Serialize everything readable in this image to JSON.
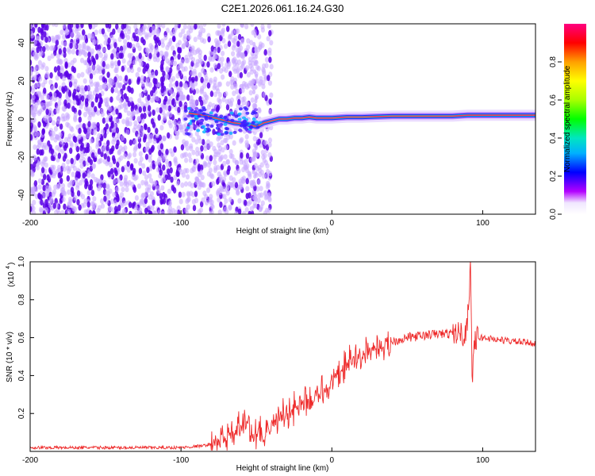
{
  "title": "C2E1.2026.061.16.24.G30",
  "colors": {
    "snr_line": "#ee2b2b",
    "dot_dense": "#5a00e6",
    "dot_light": "#c9a8ff",
    "frame": "#000000"
  },
  "chart_data": [
    {
      "type": "heatmap",
      "title": "",
      "xlabel": "Height of straight line (km)",
      "ylabel": "Frequency (Hz)",
      "xlim": [
        -200,
        135
      ],
      "ylim": [
        -50,
        50
      ],
      "xticks": [
        "-200",
        "-100",
        "0",
        "100"
      ],
      "yticks": [
        "-40",
        "-20",
        "0",
        "20",
        "40"
      ],
      "colorbar": {
        "label": "Normalized spectral amplitude",
        "range": [
          0.0,
          1.0
        ],
        "ticks": [
          "0.0",
          "0.2",
          "0.4",
          "0.6",
          "0.8"
        ]
      },
      "signal_track": {
        "x": [
          -95,
          -85,
          -75,
          -65,
          -55,
          -50,
          -45,
          -40,
          -35,
          -30,
          -25,
          -20,
          -15,
          -10,
          -5,
          0,
          10,
          20,
          40,
          60,
          80,
          90,
          100,
          120,
          135
        ],
        "y": [
          3,
          2,
          0,
          -2,
          -3,
          -4,
          -2,
          -1,
          0,
          0,
          0.5,
          0.5,
          1,
          0.5,
          0.5,
          0.5,
          1,
          1,
          1.5,
          1.5,
          1.5,
          2,
          2,
          2,
          2
        ]
      },
      "noise_region": {
        "x_from": -200,
        "x_to": -50
      }
    },
    {
      "type": "line",
      "title": "",
      "xlabel": "Height of straight line (km)",
      "ylabel": "SNR (10 * v/v)",
      "y_scale_label": "(x10",
      "y_scale_exp": "4",
      "xlim": [
        -200,
        135
      ],
      "ylim": [
        0,
        1.0
      ],
      "xticks": [
        "-200",
        "-100",
        "0",
        "100"
      ],
      "yticks": [
        "0.2",
        "0.4",
        "0.6",
        "0.8",
        "1.0"
      ],
      "series": [
        {
          "x": [
            -200,
            -150,
            -100,
            -85,
            -75,
            -65,
            -60,
            -55,
            -52,
            -48,
            -45,
            -40,
            -35,
            -30,
            -25,
            -20,
            -15,
            -10,
            -5,
            0,
            5,
            10,
            20,
            30,
            40,
            50,
            60,
            70,
            80,
            85,
            88,
            90,
            92,
            93,
            94,
            96,
            100,
            110,
            120,
            135
          ],
          "y": [
            0.02,
            0.02,
            0.02,
            0.03,
            0.05,
            0.09,
            0.13,
            0.16,
            0.06,
            0.12,
            0.04,
            0.14,
            0.18,
            0.21,
            0.22,
            0.24,
            0.26,
            0.28,
            0.32,
            0.36,
            0.41,
            0.46,
            0.51,
            0.55,
            0.58,
            0.6,
            0.61,
            0.62,
            0.62,
            0.63,
            0.6,
            0.7,
            1.0,
            0.35,
            0.55,
            0.6,
            0.6,
            0.59,
            0.58,
            0.57
          ]
        }
      ]
    }
  ]
}
